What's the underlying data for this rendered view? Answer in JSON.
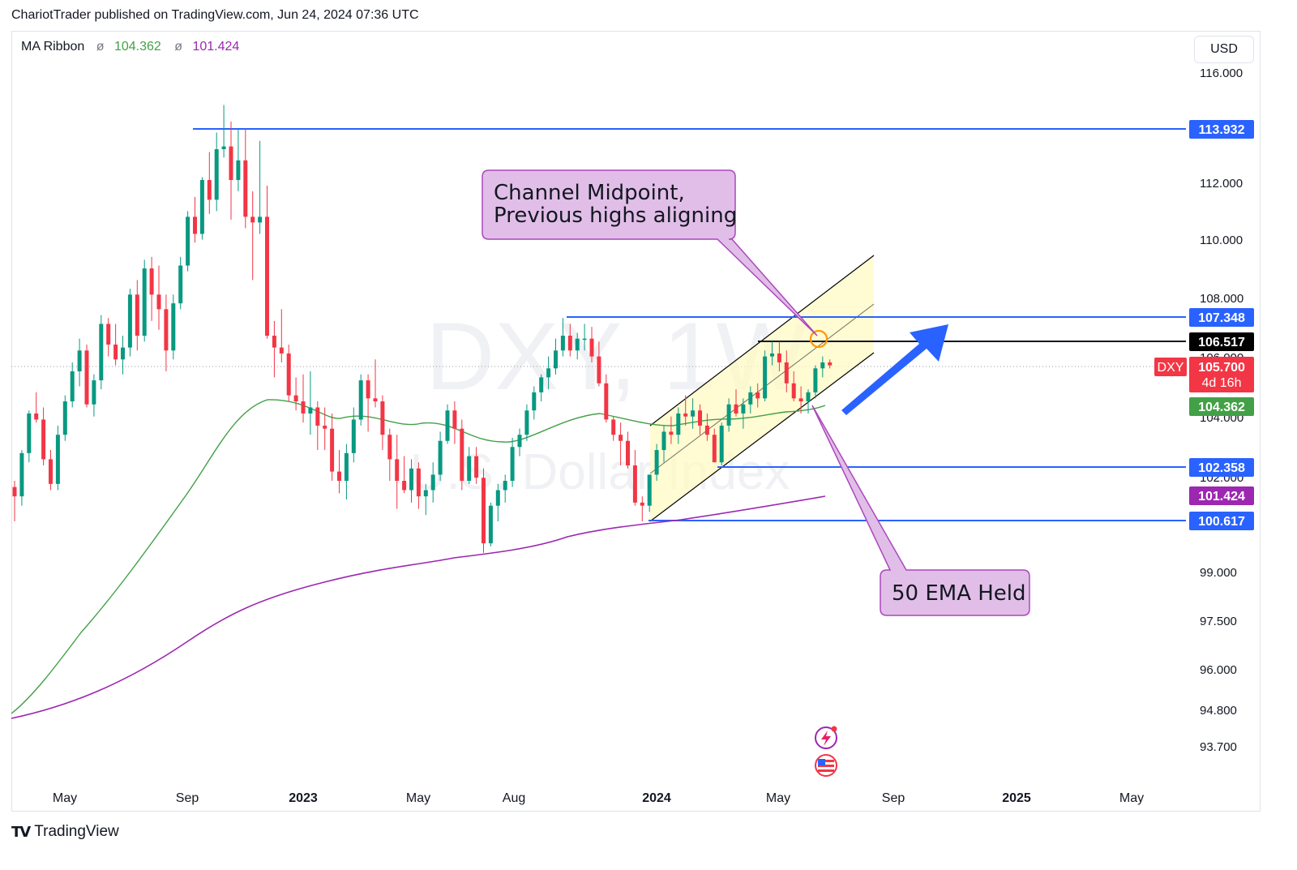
{
  "header": {
    "attribution": "ChariotTrader published on TradingView.com, Jun 24, 2024 07:36 UTC"
  },
  "indicator": {
    "name": "MA Ribbon",
    "symbol": "ø",
    "value1": "104.362",
    "value2": "101.424"
  },
  "currency": "USD",
  "watermark": {
    "symbol": "DXY, 1W",
    "description": "U.S. Dollar Index"
  },
  "footer": {
    "brand": "TradingView"
  },
  "colors": {
    "up": "#089981",
    "down": "#f23645",
    "blue_line": "#2962ff",
    "ema50": "#43a047",
    "ema200": "#9c27b0",
    "channel_fill": "#fff9c4",
    "callout": "#e1bee7",
    "callout_border": "#ab47bc"
  },
  "chart_data": {
    "type": "candlestick",
    "symbol": "DXY",
    "timeframe": "1W",
    "x_ticks": [
      "May",
      "Sep",
      "2023",
      "May",
      "Aug",
      "2024",
      "May",
      "Sep",
      "2025",
      "May"
    ],
    "y_ticks": [
      "116.000",
      "112.000",
      "110.000",
      "108.000",
      "106.000",
      "104.000",
      "102.000",
      "99.000",
      "97.500",
      "96.000",
      "94.800",
      "93.700"
    ],
    "scale": "log",
    "price_labels": [
      {
        "value": "113.932",
        "kind": "level"
      },
      {
        "value": "107.348",
        "kind": "level"
      },
      {
        "value": "106.517",
        "kind": "level-black"
      },
      {
        "value": "105.700",
        "kind": "current",
        "symbol": "DXY",
        "countdown": "4d 16h"
      },
      {
        "value": "104.362",
        "kind": "ema50"
      },
      {
        "value": "102.358",
        "kind": "level"
      },
      {
        "value": "101.424",
        "kind": "ema200"
      },
      {
        "value": "100.617",
        "kind": "level"
      }
    ],
    "horizontal_levels": [
      113.932,
      107.348,
      106.517,
      102.358,
      100.617
    ],
    "series": [
      {
        "name": "EMA 50",
        "value_last": 104.362
      },
      {
        "name": "EMA 200",
        "value_last": 101.424
      }
    ],
    "ohlc_weekly": [
      [
        101.7,
        101.9,
        100.6,
        101.4
      ],
      [
        101.4,
        102.9,
        101.1,
        102.8
      ],
      [
        102.8,
        104.2,
        102.5,
        104.1
      ],
      [
        104.1,
        104.8,
        103.8,
        103.9
      ],
      [
        103.9,
        104.3,
        102.4,
        102.6
      ],
      [
        102.6,
        102.9,
        101.6,
        101.8
      ],
      [
        101.8,
        103.7,
        101.6,
        103.4
      ],
      [
        103.4,
        104.7,
        103.2,
        104.5
      ],
      [
        104.5,
        105.8,
        104.3,
        105.5
      ],
      [
        105.5,
        106.6,
        105.0,
        106.2
      ],
      [
        106.2,
        106.4,
        104.3,
        104.4
      ],
      [
        104.4,
        105.4,
        104.0,
        105.2
      ],
      [
        105.2,
        107.4,
        104.9,
        107.1
      ],
      [
        107.1,
        107.3,
        106.0,
        106.4
      ],
      [
        106.4,
        107.1,
        105.7,
        105.9
      ],
      [
        105.9,
        106.7,
        105.4,
        106.3
      ],
      [
        106.3,
        108.3,
        106.0,
        108.1
      ],
      [
        108.1,
        108.6,
        106.2,
        106.7
      ],
      [
        106.7,
        109.3,
        106.5,
        109.0
      ],
      [
        109.0,
        109.4,
        107.2,
        108.1
      ],
      [
        108.1,
        109.1,
        106.9,
        107.6
      ],
      [
        107.6,
        108.1,
        105.5,
        106.2
      ],
      [
        106.2,
        108.1,
        105.9,
        107.8
      ],
      [
        107.8,
        109.4,
        107.6,
        109.1
      ],
      [
        109.1,
        111.0,
        108.9,
        110.8
      ],
      [
        110.8,
        111.5,
        109.9,
        110.2
      ],
      [
        110.2,
        112.2,
        110.0,
        112.1
      ],
      [
        112.1,
        113.1,
        110.9,
        111.4
      ],
      [
        111.4,
        113.8,
        111.0,
        113.2
      ],
      [
        113.2,
        114.8,
        112.9,
        113.3
      ],
      [
        113.3,
        114.2,
        110.7,
        112.1
      ],
      [
        112.1,
        113.9,
        111.7,
        112.8
      ],
      [
        112.8,
        113.9,
        110.4,
        110.8
      ],
      [
        110.8,
        111.7,
        108.6,
        110.6
      ],
      [
        110.6,
        113.5,
        110.2,
        110.8
      ],
      [
        110.8,
        111.9,
        106.6,
        106.7
      ],
      [
        106.7,
        107.2,
        105.3,
        106.3
      ],
      [
        106.3,
        107.6,
        105.8,
        106.1
      ],
      [
        106.1,
        106.4,
        104.5,
        104.7
      ],
      [
        104.7,
        105.3,
        104.2,
        104.5
      ],
      [
        104.5,
        105.4,
        103.8,
        104.1
      ],
      [
        104.1,
        105.5,
        103.4,
        104.3
      ],
      [
        104.3,
        104.5,
        102.9,
        103.7
      ],
      [
        103.7,
        104.3,
        102.9,
        103.6
      ],
      [
        103.6,
        104.1,
        101.9,
        102.2
      ],
      [
        102.2,
        102.9,
        101.5,
        101.9
      ],
      [
        101.9,
        103.1,
        101.3,
        102.8
      ],
      [
        102.8,
        104.3,
        102.5,
        103.9
      ],
      [
        103.9,
        105.4,
        103.7,
        105.2
      ],
      [
        105.2,
        105.4,
        103.5,
        104.6
      ],
      [
        104.6,
        105.9,
        104.3,
        104.5
      ],
      [
        104.5,
        104.7,
        102.9,
        103.4
      ],
      [
        103.4,
        103.6,
        101.9,
        102.6
      ],
      [
        102.6,
        103.4,
        101.0,
        101.9
      ],
      [
        101.9,
        102.7,
        101.5,
        101.6
      ],
      [
        101.6,
        102.6,
        101.2,
        102.3
      ],
      [
        102.3,
        102.5,
        101.0,
        101.4
      ],
      [
        101.4,
        101.8,
        100.8,
        101.6
      ],
      [
        101.6,
        102.5,
        101.2,
        102.1
      ],
      [
        102.1,
        103.5,
        101.9,
        103.2
      ],
      [
        103.2,
        104.4,
        103.1,
        104.2
      ],
      [
        104.2,
        104.5,
        103.1,
        103.6
      ],
      [
        103.6,
        103.9,
        101.6,
        101.9
      ],
      [
        101.9,
        103.0,
        101.8,
        102.7
      ],
      [
        102.7,
        103.0,
        101.8,
        102.0
      ],
      [
        102.0,
        102.3,
        99.6,
        99.9
      ],
      [
        99.9,
        101.2,
        99.8,
        101.1
      ],
      [
        101.1,
        101.8,
        100.6,
        101.6
      ],
      [
        101.6,
        102.1,
        101.2,
        101.9
      ],
      [
        101.9,
        103.3,
        101.7,
        103.0
      ],
      [
        103.0,
        103.6,
        102.7,
        103.4
      ],
      [
        103.4,
        104.4,
        103.2,
        104.2
      ],
      [
        104.2,
        105.0,
        103.9,
        104.8
      ],
      [
        104.8,
        105.4,
        104.5,
        105.3
      ],
      [
        105.3,
        106.0,
        104.9,
        105.6
      ],
      [
        105.6,
        106.6,
        105.4,
        106.2
      ],
      [
        106.2,
        107.3,
        106.0,
        106.7
      ],
      [
        106.7,
        107.1,
        106.0,
        106.2
      ],
      [
        106.2,
        106.8,
        105.9,
        106.6
      ],
      [
        106.6,
        107.1,
        106.2,
        106.6
      ],
      [
        106.6,
        107.0,
        105.8,
        106.0
      ],
      [
        106.0,
        106.5,
        105.0,
        105.1
      ],
      [
        105.1,
        105.4,
        103.8,
        103.9
      ],
      [
        103.9,
        104.0,
        103.2,
        103.4
      ],
      [
        103.4,
        103.8,
        102.4,
        103.2
      ],
      [
        103.2,
        103.5,
        102.3,
        102.4
      ],
      [
        102.4,
        102.9,
        101.1,
        101.2
      ],
      [
        101.2,
        101.4,
        100.6,
        101.1
      ],
      [
        101.1,
        102.1,
        100.9,
        102.1
      ],
      [
        102.1,
        103.1,
        101.9,
        102.9
      ],
      [
        102.9,
        103.7,
        102.5,
        103.5
      ],
      [
        103.5,
        104.0,
        103.1,
        103.4
      ],
      [
        103.4,
        104.3,
        103.1,
        104.1
      ],
      [
        104.1,
        104.7,
        103.7,
        104.0
      ],
      [
        104.0,
        104.6,
        103.6,
        104.2
      ],
      [
        104.2,
        104.4,
        103.4,
        103.7
      ],
      [
        103.7,
        104.1,
        103.2,
        103.4
      ],
      [
        103.4,
        103.6,
        102.7,
        102.5
      ],
      [
        102.5,
        103.8,
        102.4,
        103.7
      ],
      [
        103.7,
        104.6,
        103.5,
        104.4
      ],
      [
        104.4,
        104.9,
        104.0,
        104.1
      ],
      [
        104.1,
        104.6,
        103.6,
        104.4
      ],
      [
        104.4,
        105.0,
        104.1,
        104.8
      ],
      [
        104.8,
        105.1,
        104.3,
        104.6
      ],
      [
        104.6,
        106.2,
        104.5,
        106.0
      ],
      [
        106.0,
        106.5,
        105.7,
        106.1
      ],
      [
        106.1,
        106.5,
        105.5,
        105.8
      ],
      [
        105.8,
        106.2,
        104.8,
        105.1
      ],
      [
        105.1,
        105.5,
        104.5,
        104.6
      ],
      [
        104.6,
        105.0,
        104.1,
        104.5
      ],
      [
        104.5,
        104.9,
        104.1,
        104.8
      ],
      [
        104.8,
        105.7,
        104.6,
        105.6
      ],
      [
        105.6,
        106.0,
        105.3,
        105.8
      ],
      [
        105.8,
        105.9,
        105.6,
        105.7
      ]
    ],
    "channel": {
      "lower_start": [
        100.617,
        "2023-12"
      ],
      "note": "ascending channel, highlighted in yellow"
    },
    "annotations": [
      {
        "text_line1": "Channel Midpoint,",
        "text_line2": "Previous highs aligning"
      },
      {
        "text": "50 EMA Held"
      }
    ]
  }
}
